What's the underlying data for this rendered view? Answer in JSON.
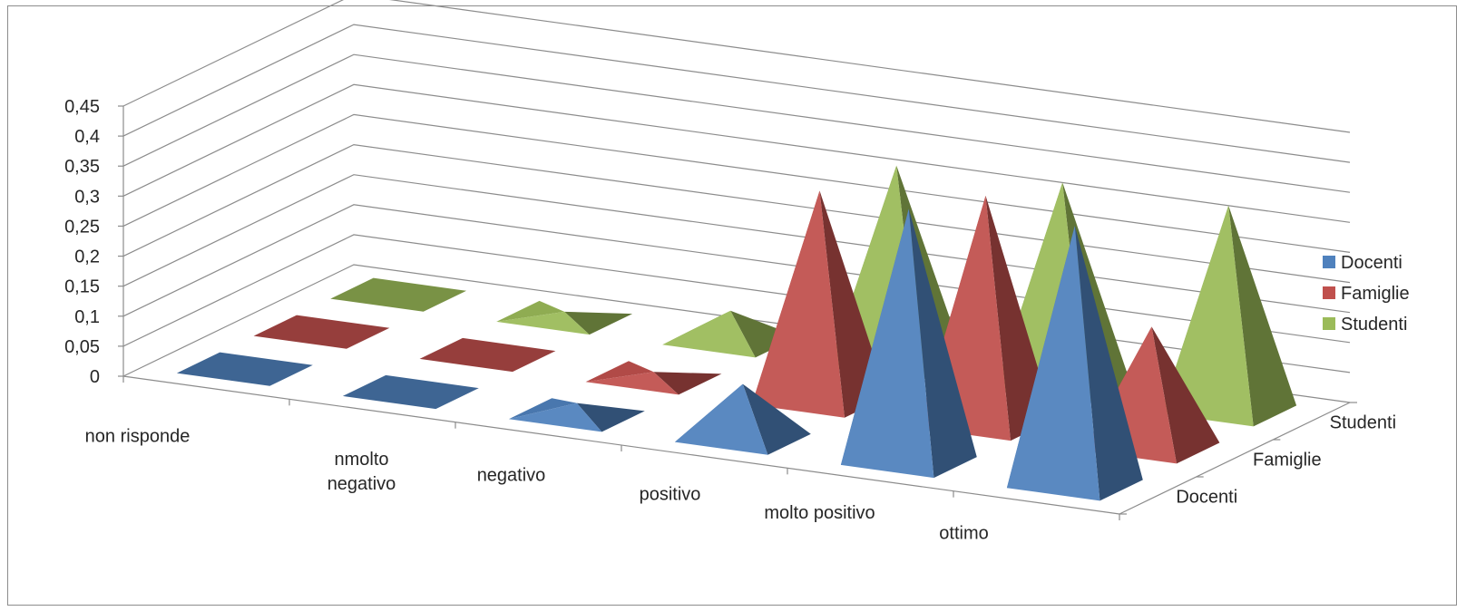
{
  "chart_data": {
    "type": "bar",
    "style": "3d-pyramid",
    "title": "",
    "categories": [
      "non risponde",
      "nmolto negativo",
      "negativo",
      "positivo",
      "molto positivo",
      "ottimo"
    ],
    "category_lines": [
      [
        "non risponde"
      ],
      [
        "nmolto",
        "negativo"
      ],
      [
        "negativo"
      ],
      [
        "positivo"
      ],
      [
        "molto positivo"
      ],
      [
        "ottimo"
      ]
    ],
    "series": [
      {
        "name": "Docenti",
        "color": "#4f81bd",
        "values": [
          0.0,
          0.0,
          0.02,
          0.09,
          0.42,
          0.43
        ]
      },
      {
        "name": "Famiglie",
        "color": "#c0504d",
        "values": [
          0.0,
          0.0,
          0.01,
          0.35,
          0.38,
          0.2
        ]
      },
      {
        "name": "Studenti",
        "color": "#9bbb59",
        "values": [
          0.0,
          0.01,
          0.05,
          0.33,
          0.34,
          0.34
        ]
      }
    ],
    "depth_labels": [
      "Studenti",
      "Famiglie",
      "Docenti"
    ],
    "y_ticks": [
      "0",
      "0,05",
      "0,1",
      "0,15",
      "0,2",
      "0,25",
      "0,3",
      "0,35",
      "0,4",
      "0,45"
    ],
    "ylim": [
      0,
      0.45
    ],
    "legend": {
      "position": "right",
      "items": [
        "Docenti",
        "Famiglie",
        "Studenti"
      ]
    },
    "grid": true
  }
}
